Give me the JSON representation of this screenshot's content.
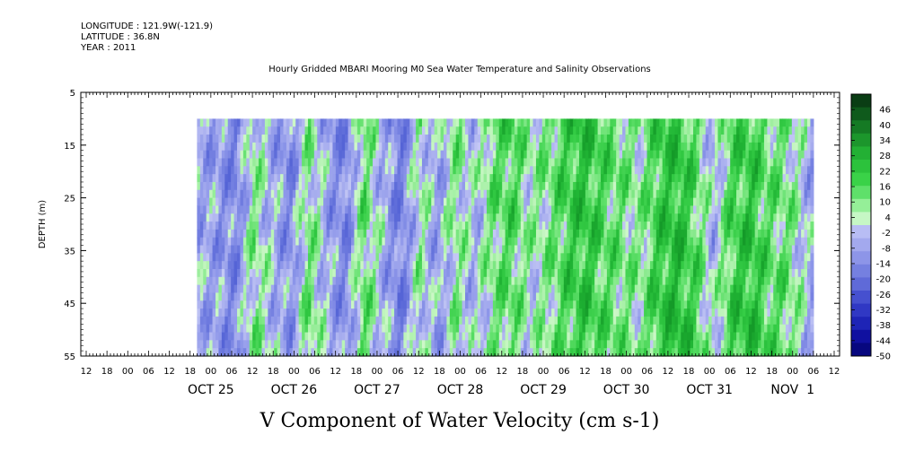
{
  "header": {
    "longitude": "LONGITUDE : 121.9W(-121.9)",
    "latitude": "LATITUDE : 36.8N",
    "year": "YEAR : 2011"
  },
  "chart_data": {
    "type": "heatmap",
    "title": "Hourly Gridded MBARI Mooring M0 Sea Water Temperature and Salinity Observations",
    "variable_label": "V Component of Water Velocity (cm s-1)",
    "ylabel": "DEPTH (m)",
    "y_ticks": [
      "5",
      "15",
      "25",
      "35",
      "45",
      "55"
    ],
    "ylim": [
      5,
      55
    ],
    "y_reversed": true,
    "hour_ticks": [
      "12",
      "18",
      "00",
      "06",
      "12",
      "18",
      "00",
      "06",
      "12",
      "18",
      "00",
      "06",
      "12",
      "18",
      "00",
      "06",
      "12",
      "18",
      "00",
      "06",
      "12",
      "18",
      "00",
      "06",
      "12",
      "18",
      "00",
      "06",
      "12",
      "18",
      "00",
      "06",
      "12",
      "18",
      "00",
      "06",
      "12"
    ],
    "date_ticks": [
      "OCT 25",
      "OCT 26",
      "OCT 27",
      "OCT 28",
      "OCT 29",
      "OCT 30",
      "OCT 31",
      "NOV  1"
    ],
    "data_extent": {
      "time_start": "OCT 25 20",
      "time_end": "NOV 1 12",
      "depth_top": 10,
      "depth_bottom": 55
    },
    "colorbar": {
      "labels": [
        "46",
        "40",
        "34",
        "28",
        "22",
        "16",
        "10",
        "4",
        "-2",
        "-8",
        "-14",
        "-20",
        "-26",
        "-32",
        "-38",
        "-44",
        "-50"
      ],
      "range": [
        -50,
        52
      ]
    },
    "column_profile": [
      {
        "t": 0.0,
        "v": -6
      },
      {
        "t": 0.03,
        "v": -8
      },
      {
        "t": 0.06,
        "v": -14
      },
      {
        "t": 0.09,
        "v": 6
      },
      {
        "t": 0.12,
        "v": -4
      },
      {
        "t": 0.15,
        "v": -12
      },
      {
        "t": 0.18,
        "v": 8
      },
      {
        "t": 0.21,
        "v": -6
      },
      {
        "t": 0.24,
        "v": -14
      },
      {
        "t": 0.27,
        "v": 10
      },
      {
        "t": 0.3,
        "v": -4
      },
      {
        "t": 0.33,
        "v": -16
      },
      {
        "t": 0.36,
        "v": 4
      },
      {
        "t": 0.39,
        "v": -8
      },
      {
        "t": 0.42,
        "v": 6
      },
      {
        "t": 0.45,
        "v": -4
      },
      {
        "t": 0.48,
        "v": 8
      },
      {
        "t": 0.51,
        "v": 12
      },
      {
        "t": 0.54,
        "v": 2
      },
      {
        "t": 0.57,
        "v": 6
      },
      {
        "t": 0.6,
        "v": 14
      },
      {
        "t": 0.63,
        "v": 18
      },
      {
        "t": 0.66,
        "v": 12
      },
      {
        "t": 0.69,
        "v": 8
      },
      {
        "t": 0.72,
        "v": 4
      },
      {
        "t": 0.75,
        "v": 16
      },
      {
        "t": 0.78,
        "v": 20
      },
      {
        "t": 0.81,
        "v": 12
      },
      {
        "t": 0.84,
        "v": -4
      },
      {
        "t": 0.87,
        "v": 14
      },
      {
        "t": 0.9,
        "v": 18
      },
      {
        "t": 0.93,
        "v": 10
      },
      {
        "t": 0.96,
        "v": 8
      },
      {
        "t": 1.0,
        "v": -6
      }
    ]
  }
}
